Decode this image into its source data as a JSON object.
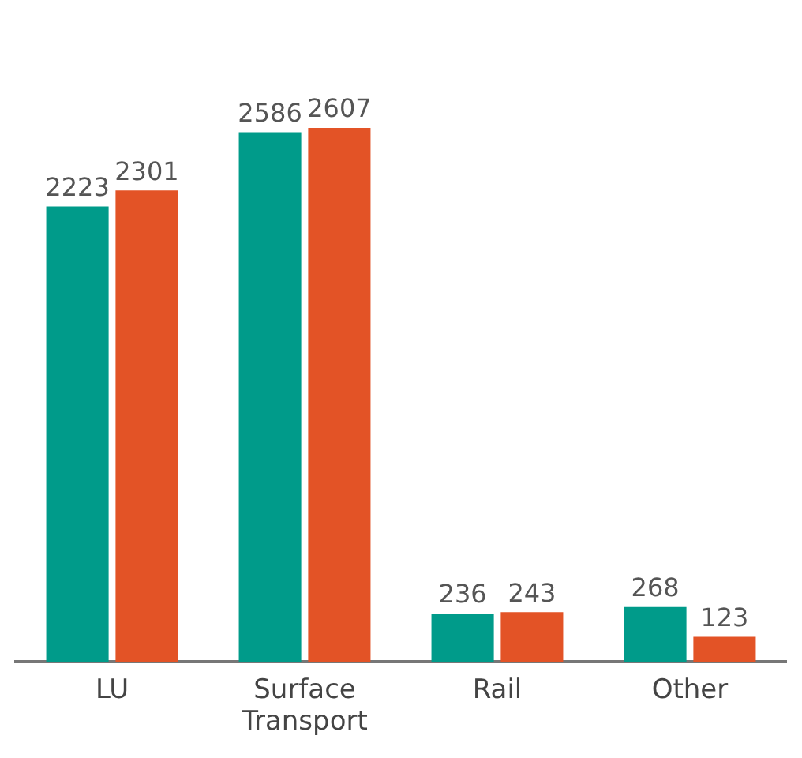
{
  "chart_data": {
    "type": "bar",
    "categories": [
      "LU",
      "Surface Transport",
      "Rail",
      "Other"
    ],
    "series": [
      {
        "color": "#009b8a",
        "values": [
          2223,
          2586,
          236,
          268
        ]
      },
      {
        "color": "#e35326",
        "values": [
          2301,
          2607,
          243,
          123
        ]
      }
    ],
    "data_labels": true,
    "legend": false,
    "grid": false
  }
}
